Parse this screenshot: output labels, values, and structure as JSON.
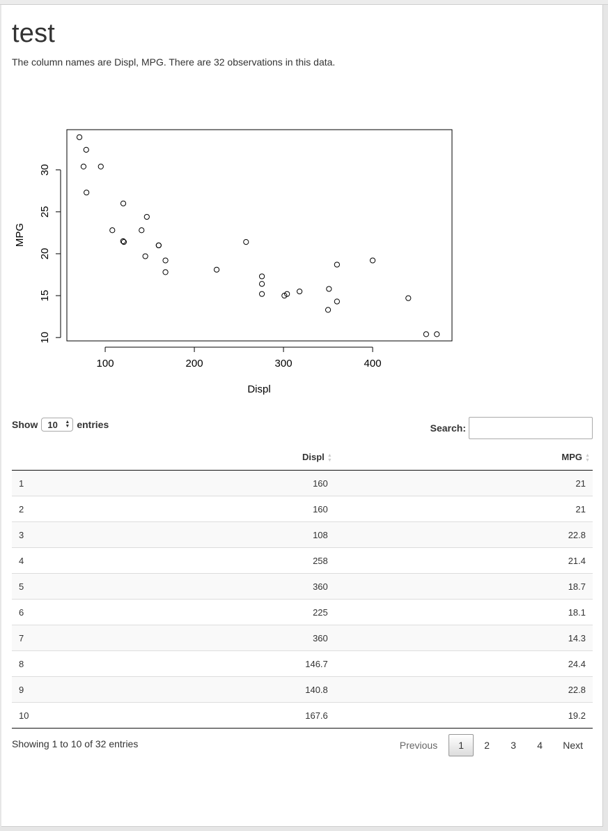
{
  "page": {
    "title": "test",
    "description": "The column names are Displ, MPG. There are 32 observations in this data."
  },
  "chart_data": {
    "type": "scatter",
    "title": "",
    "xlabel": "Displ",
    "ylabel": "MPG",
    "xlim": [
      57,
      489
    ],
    "ylim": [
      9.6,
      34.8
    ],
    "xticks": [
      100,
      200,
      300,
      400
    ],
    "yticks": [
      10,
      15,
      20,
      25,
      30
    ],
    "x": [
      160,
      160,
      108,
      258,
      360,
      225,
      360,
      146.7,
      140.8,
      167.6,
      167.6,
      275.8,
      275.8,
      275.8,
      472,
      460,
      440,
      78.7,
      75.7,
      71.1,
      120.1,
      318,
      304,
      350,
      400,
      79,
      120.3,
      95.1,
      351,
      145,
      301,
      121
    ],
    "y": [
      21,
      21,
      22.8,
      21.4,
      18.7,
      18.1,
      14.3,
      24.4,
      22.8,
      19.2,
      17.8,
      16.4,
      17.3,
      15.2,
      10.4,
      10.4,
      14.7,
      32.4,
      30.4,
      33.9,
      21.5,
      15.5,
      15.2,
      13.3,
      19.2,
      27.3,
      26,
      30.4,
      15.8,
      19.7,
      15,
      21.4
    ]
  },
  "table": {
    "length_label_before": "Show",
    "length_value": "10",
    "length_label_after": "entries",
    "search_label": "Search:",
    "search_value": "",
    "columns": [
      "",
      "Displ",
      "MPG"
    ],
    "rows": [
      [
        "1",
        "160",
        "21"
      ],
      [
        "2",
        "160",
        "21"
      ],
      [
        "3",
        "108",
        "22.8"
      ],
      [
        "4",
        "258",
        "21.4"
      ],
      [
        "5",
        "360",
        "18.7"
      ],
      [
        "6",
        "225",
        "18.1"
      ],
      [
        "7",
        "360",
        "14.3"
      ],
      [
        "8",
        "146.7",
        "24.4"
      ],
      [
        "9",
        "140.8",
        "22.8"
      ],
      [
        "10",
        "167.6",
        "19.2"
      ]
    ],
    "info": "Showing 1 to 10 of 32 entries",
    "pagination": {
      "previous": "Previous",
      "pages": [
        "1",
        "2",
        "3",
        "4"
      ],
      "next": "Next"
    }
  }
}
